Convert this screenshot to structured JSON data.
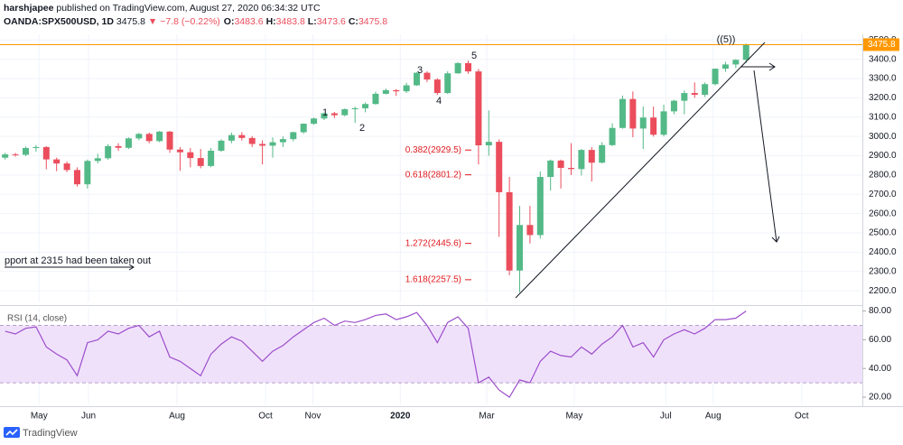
{
  "header": {
    "author": "harshjapee",
    "published": "published on TradingView.com, August 27, 2020 06:34:32 UTC",
    "symbol": "OANDA:SPX500USD, 1D",
    "last": "3475.8",
    "change": "▼ −7.8 (−0.22%)",
    "ohlc": [
      {
        "key": "O:",
        "value": "3483.6"
      },
      {
        "key": "H:",
        "value": "3483.8"
      },
      {
        "key": "L:",
        "value": "3473.6"
      },
      {
        "key": "C:",
        "value": "3475.8"
      }
    ]
  },
  "chart_data": [
    {
      "type": "candlestick",
      "up_color": "#53b987",
      "down_color": "#eb4d5c",
      "grid": true,
      "xlim": [
        -0.5,
        83.3
      ],
      "ylim": [
        2140,
        3520
      ],
      "yticks": [
        {
          "value": 2200,
          "label": "2200.0"
        },
        {
          "value": 2300,
          "label": "2300.0"
        },
        {
          "value": 2400,
          "label": "2400.0"
        },
        {
          "value": 2500,
          "label": "2500.0"
        },
        {
          "value": 2600,
          "label": "2600.0"
        },
        {
          "value": 2700,
          "label": "2700.0"
        },
        {
          "value": 2800,
          "label": "2800.0"
        },
        {
          "value": 2900,
          "label": "2900.0"
        },
        {
          "value": 3000,
          "label": "3000.0"
        },
        {
          "value": 3100,
          "label": "3100.0"
        },
        {
          "value": 3200,
          "label": "3200.0"
        },
        {
          "value": 3300,
          "label": "3300.0"
        },
        {
          "value": 3400,
          "label": "3400.0"
        },
        {
          "value": 3500,
          "label": "3500.0"
        }
      ],
      "last_price": 3475.8,
      "last_price_color": "#ff9800",
      "open": [
        2890,
        2907,
        2905,
        2940,
        2945,
        2881,
        2860,
        2826,
        2752,
        2873,
        2887,
        2950,
        2941,
        2990,
        3013,
        2976,
        3025,
        2932,
        2918,
        2888,
        2847,
        2926,
        2978,
        3007,
        2992,
        2961,
        2952,
        2970,
        2986,
        3022,
        3066,
        3093,
        3120,
        3110,
        3141,
        3146,
        3168,
        3221,
        3240,
        3234,
        3265,
        3330,
        3295,
        3225,
        3327,
        3380,
        3337,
        2954,
        2972,
        2711,
        2305,
        2541,
        2489,
        2790,
        2875,
        2837,
        2831,
        2930,
        2864,
        2955,
        3044,
        3194,
        3041,
        3098,
        3009,
        3130,
        3185,
        3225,
        3216,
        3271,
        3351,
        3373,
        3397
      ],
      "high": [
        2915,
        2915,
        2948,
        2955,
        2950,
        2890,
        2870,
        2840,
        2880,
        2910,
        2960,
        2965,
        2995,
        3018,
        3020,
        3028,
        3028,
        2945,
        2940,
        2935,
        2940,
        2985,
        3020,
        3022,
        3002,
        2980,
        2995,
        3000,
        3025,
        3068,
        3098,
        3124,
        3127,
        3145,
        3155,
        3176,
        3232,
        3248,
        3245,
        3278,
        3333,
        3338,
        3302,
        3338,
        3385,
        3393,
        3350,
        3135,
        2985,
        2790,
        2640,
        2640,
        2819,
        2880,
        2880,
        2965,
        2935,
        2945,
        2970,
        3068,
        3212,
        3233,
        3155,
        3155,
        3165,
        3190,
        3238,
        3280,
        3280,
        3352,
        3387,
        3400,
        3482
      ],
      "low": [
        2880,
        2895,
        2898,
        2920,
        2830,
        2820,
        2815,
        2740,
        2730,
        2860,
        2880,
        2925,
        2935,
        2980,
        2965,
        2970,
        2915,
        2822,
        2840,
        2835,
        2840,
        2920,
        2965,
        2978,
        2945,
        2855,
        2890,
        2945,
        2975,
        3015,
        3060,
        3085,
        3095,
        3105,
        3070,
        3125,
        3165,
        3218,
        3210,
        3225,
        3262,
        3282,
        3215,
        3220,
        3325,
        3325,
        2855,
        2900,
        2480,
        2280,
        2192,
        2445,
        2470,
        2720,
        2730,
        2800,
        2797,
        2766,
        2860,
        2950,
        3040,
        2996,
        2935,
        2999,
        3000,
        3115,
        3115,
        3200,
        3204,
        3265,
        3335,
        3354,
        3380
      ],
      "close": [
        2907,
        2905,
        2940,
        2945,
        2881,
        2860,
        2826,
        2752,
        2873,
        2887,
        2950,
        2941,
        2990,
        3013,
        2976,
        3025,
        2932,
        2918,
        2888,
        2847,
        2926,
        2978,
        3007,
        2992,
        2961,
        2952,
        2970,
        2986,
        3022,
        3066,
        3093,
        3120,
        3110,
        3141,
        3146,
        3168,
        3221,
        3240,
        3234,
        3265,
        3330,
        3295,
        3225,
        3327,
        3380,
        3337,
        2954,
        2972,
        2711,
        2305,
        2541,
        2489,
        2790,
        2875,
        2837,
        2831,
        2930,
        2864,
        2955,
        3044,
        3194,
        3041,
        3098,
        3009,
        3130,
        3185,
        3225,
        3216,
        3271,
        3351,
        3373,
        3397,
        3476
      ],
      "annotations": [
        {
          "label": "0.382(2929.5)",
          "value": 2929.5
        },
        {
          "label": "0.618(2801.2)",
          "value": 2801.2
        },
        {
          "label": "1.272(2445.6)",
          "value": 2445.6
        },
        {
          "label": "1.618(2257.5)",
          "value": 2257.5
        }
      ],
      "annotation_color": "#e0191f",
      "wave_labels": [
        "1",
        "2",
        "3",
        "4",
        "5",
        "((5))"
      ],
      "note": "pport at 2315 had been taken out"
    },
    {
      "type": "line",
      "title": "RSI (14, close)",
      "color": "#9b4dca",
      "band": [
        30,
        70
      ],
      "band_color": "#f0e1fb",
      "xlim": [
        -0.5,
        83.3
      ],
      "ylim": [
        15,
        81
      ],
      "yticks": [
        {
          "value": 20,
          "label": "20.00"
        },
        {
          "value": 40,
          "label": "40.00"
        },
        {
          "value": 60,
          "label": "60.00"
        },
        {
          "value": 80,
          "label": "80.00"
        }
      ],
      "xticks": [
        {
          "value": 3.3,
          "label": "May"
        },
        {
          "value": 8.1,
          "label": "Jun"
        },
        {
          "value": 16.7,
          "label": "Aug"
        },
        {
          "value": 25.3,
          "label": "Oct"
        },
        {
          "value": 29.9,
          "label": "Nov"
        },
        {
          "value": 38.4,
          "label": "2020"
        },
        {
          "value": 46.8,
          "label": "Mar"
        },
        {
          "value": 55.3,
          "label": "May"
        },
        {
          "value": 64.2,
          "label": "Jul"
        },
        {
          "value": 68.8,
          "label": "Aug"
        },
        {
          "value": 77.4,
          "label": "Oct"
        }
      ],
      "values": [
        66,
        64,
        68,
        69,
        55,
        50,
        46,
        35,
        58,
        60,
        66,
        64,
        68,
        70,
        62,
        66,
        48,
        45,
        40,
        35,
        50,
        57,
        62,
        59,
        52,
        45,
        52,
        56,
        62,
        67,
        72,
        75,
        70,
        73,
        72,
        74,
        77,
        78,
        74,
        76,
        79,
        70,
        58,
        72,
        76,
        68,
        30,
        34,
        25,
        20,
        32,
        30,
        45,
        52,
        49,
        48,
        55,
        50,
        57,
        62,
        70,
        55,
        58,
        48,
        60,
        64,
        67,
        64,
        68,
        74,
        74,
        75,
        80
      ]
    }
  ],
  "footer": {
    "brand": "TradingView"
  }
}
